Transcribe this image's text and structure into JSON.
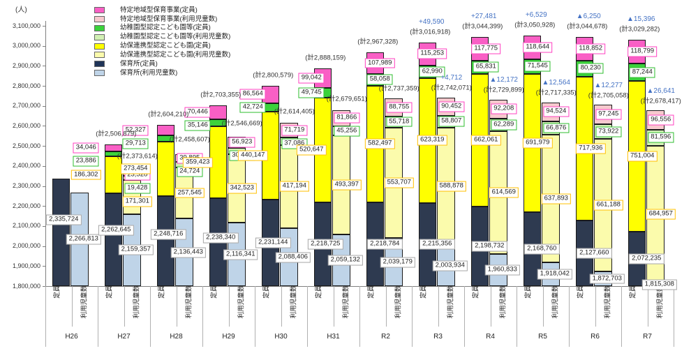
{
  "chart_data": {
    "type": "bar",
    "stacked": true,
    "title": "",
    "unit_label": "(人)",
    "ylim": [
      1800000,
      3100000
    ],
    "ytick_step": 100000,
    "grid": false,
    "legend_position": "top-left",
    "bar_labels": {
      "teiin": "定員",
      "riyo": "利用児童数"
    },
    "series_stack_order": [
      "hoikusho",
      "yoho",
      "yochien",
      "tokutei"
    ],
    "legend": [
      {
        "id": "tokutei-teiin",
        "label": "特定地域型保育事業(定員)",
        "color": "#F95FC5"
      },
      {
        "id": "tokutei-riyo",
        "label": "特定地域型保育事業(利用児童数)",
        "color": "#F7C9CE"
      },
      {
        "id": "yochien-teiin",
        "label": "幼稚園型認定こども園等(定員)",
        "color": "#3BD23B"
      },
      {
        "id": "yochien-riyo",
        "label": "幼稚園型認定こども園等(利用児童数)",
        "color": "#D2F0B4"
      },
      {
        "id": "yoho-teiin",
        "label": "幼保連携型認定こども園(定員)",
        "color": "#FFFF00"
      },
      {
        "id": "yoho-riyo",
        "label": "幼保連携型認定こども園(利用児童数)",
        "color": "#FBFBAC"
      },
      {
        "id": "hoikusho-teiin",
        "label": "保育所(定員)",
        "color": "#1F3458"
      },
      {
        "id": "hoikusho-riyo",
        "label": "保育所(利用児童数)",
        "color": "#BFD4E8"
      }
    ],
    "colors": {
      "teiin": {
        "tokutei": "#F95FC5",
        "yochien": "#3BD23B",
        "yoho": "#FFFF00",
        "hoikusho": "#2E3A50"
      },
      "riyo": {
        "tokutei": "#F7C9CE",
        "yochien": "#D2F0B4",
        "yoho": "#FBFBAC",
        "hoikusho": "#BFD4E8"
      },
      "label_border": {
        "tokutei": "#FF40C0",
        "yochien": "#2FBE2F",
        "yoho": "#FFC000",
        "hoikusho": "#A6A6A6"
      },
      "diff_text": "#4472C4",
      "total_text": "#303030"
    },
    "total_prefix": "(計",
    "total_suffix": ")",
    "groups": [
      {
        "year": "H26",
        "teiin": {
          "total": null,
          "diff": null,
          "segments": {
            "hoikusho": 2335724,
            "yoho": null,
            "yochien": null,
            "tokutei": null
          }
        },
        "riyo": {
          "total": null,
          "diff": null,
          "segments": {
            "hoikusho": 2266813,
            "yoho": null,
            "yochien": null,
            "tokutei": null
          }
        }
      },
      {
        "year": "H27",
        "teiin": {
          "total": 2506879,
          "diff": null,
          "segments": {
            "hoikusho": 2262645,
            "yoho": 186302,
            "yochien": 23886,
            "tokutei": 34046
          }
        },
        "riyo": {
          "total": 2373614,
          "diff": null,
          "segments": {
            "hoikusho": 2159357,
            "yoho": 171301,
            "yochien": 19428,
            "tokutei": 23528
          }
        }
      },
      {
        "year": "H28",
        "teiin": {
          "total": 2604210,
          "diff": null,
          "segments": {
            "hoikusho": 2248716,
            "yoho": 273454,
            "yochien": 29713,
            "tokutei": 52327
          }
        },
        "riyo": {
          "total": 2458607,
          "diff": null,
          "segments": {
            "hoikusho": 2136443,
            "yoho": 257545,
            "yochien": 24724,
            "tokutei": 39895
          }
        }
      },
      {
        "year": "H29",
        "teiin": {
          "total": 2703355,
          "diff": null,
          "segments": {
            "hoikusho": 2238340,
            "yoho": 359423,
            "yochien": 35146,
            "tokutei": 70446
          }
        },
        "riyo": {
          "total": 2546669,
          "diff": null,
          "segments": {
            "hoikusho": 2116341,
            "yoho": 342523,
            "yochien": 30882,
            "tokutei": 56923
          }
        }
      },
      {
        "year": "H30",
        "teiin": {
          "total": 2800579,
          "diff": null,
          "segments": {
            "hoikusho": 2231144,
            "yoho": 440147,
            "yochien": 42724,
            "tokutei": 86564
          }
        },
        "riyo": {
          "total": 2614405,
          "diff": null,
          "segments": {
            "hoikusho": 2088406,
            "yoho": 417194,
            "yochien": 37086,
            "tokutei": 71719
          }
        }
      },
      {
        "year": "H31",
        "teiin": {
          "total": 2888159,
          "diff": null,
          "segments": {
            "hoikusho": 2218725,
            "yoho": 520647,
            "yochien": 49745,
            "tokutei": 99042
          }
        },
        "riyo": {
          "total": 2679651,
          "diff": null,
          "segments": {
            "hoikusho": 2059132,
            "yoho": 493397,
            "yochien": 45256,
            "tokutei": 81866
          }
        }
      },
      {
        "year": "R2",
        "teiin": {
          "total": 2967328,
          "diff": null,
          "segments": {
            "hoikusho": 2218784,
            "yoho": 582497,
            "yochien": 58058,
            "tokutei": 107989
          }
        },
        "riyo": {
          "total": 2737359,
          "diff": null,
          "segments": {
            "hoikusho": 2039179,
            "yoho": 553707,
            "yochien": 55718,
            "tokutei": 88755
          }
        }
      },
      {
        "year": "R3",
        "teiin": {
          "total": 3016918,
          "diff": "+49,590",
          "segments": {
            "hoikusho": 2215356,
            "yoho": 623319,
            "yochien": 62990,
            "tokutei": 115253
          }
        },
        "riyo": {
          "total": 2742071,
          "diff": "+4,712",
          "segments": {
            "hoikusho": 2003934,
            "yoho": 588878,
            "yochien": 58807,
            "tokutei": 90452
          }
        }
      },
      {
        "year": "R4",
        "teiin": {
          "total": 3044399,
          "diff": "+27,481",
          "segments": {
            "hoikusho": 2198732,
            "yoho": 662061,
            "yochien": 65831,
            "tokutei": 117775
          }
        },
        "riyo": {
          "total": 2729899,
          "diff": "▲12,172",
          "segments": {
            "hoikusho": 1960833,
            "yoho": 614569,
            "yochien": 62289,
            "tokutei": 92208
          }
        }
      },
      {
        "year": "R5",
        "teiin": {
          "total": 3050928,
          "diff": "+6,529",
          "segments": {
            "hoikusho": 2168760,
            "yoho": 691979,
            "yochien": 71545,
            "tokutei": 118644
          }
        },
        "riyo": {
          "total": 2717335,
          "diff": "▲12,564",
          "segments": {
            "hoikusho": 1918042,
            "yoho": 637893,
            "yochien": 66876,
            "tokutei": 94524
          }
        }
      },
      {
        "year": "R6",
        "teiin": {
          "total": 3044678,
          "diff": "▲6,250",
          "segments": {
            "hoikusho": 2127660,
            "yoho": 717936,
            "yochien": 80230,
            "tokutei": 118852
          }
        },
        "riyo": {
          "total": 2705058,
          "diff": "▲12,277",
          "segments": {
            "hoikusho": 1872703,
            "yoho": 661188,
            "yochien": 73922,
            "tokutei": 97245
          }
        }
      },
      {
        "year": "R7",
        "teiin": {
          "total": 3029282,
          "diff": "▲15,396",
          "segments": {
            "hoikusho": 2072235,
            "yoho": 751004,
            "yochien": 87244,
            "tokutei": 118799
          }
        },
        "riyo": {
          "total": 2678417,
          "diff": "▲26,641",
          "segments": {
            "hoikusho": 1815308,
            "yoho": 684957,
            "yochien": 81596,
            "tokutei": 96556
          }
        }
      }
    ]
  }
}
